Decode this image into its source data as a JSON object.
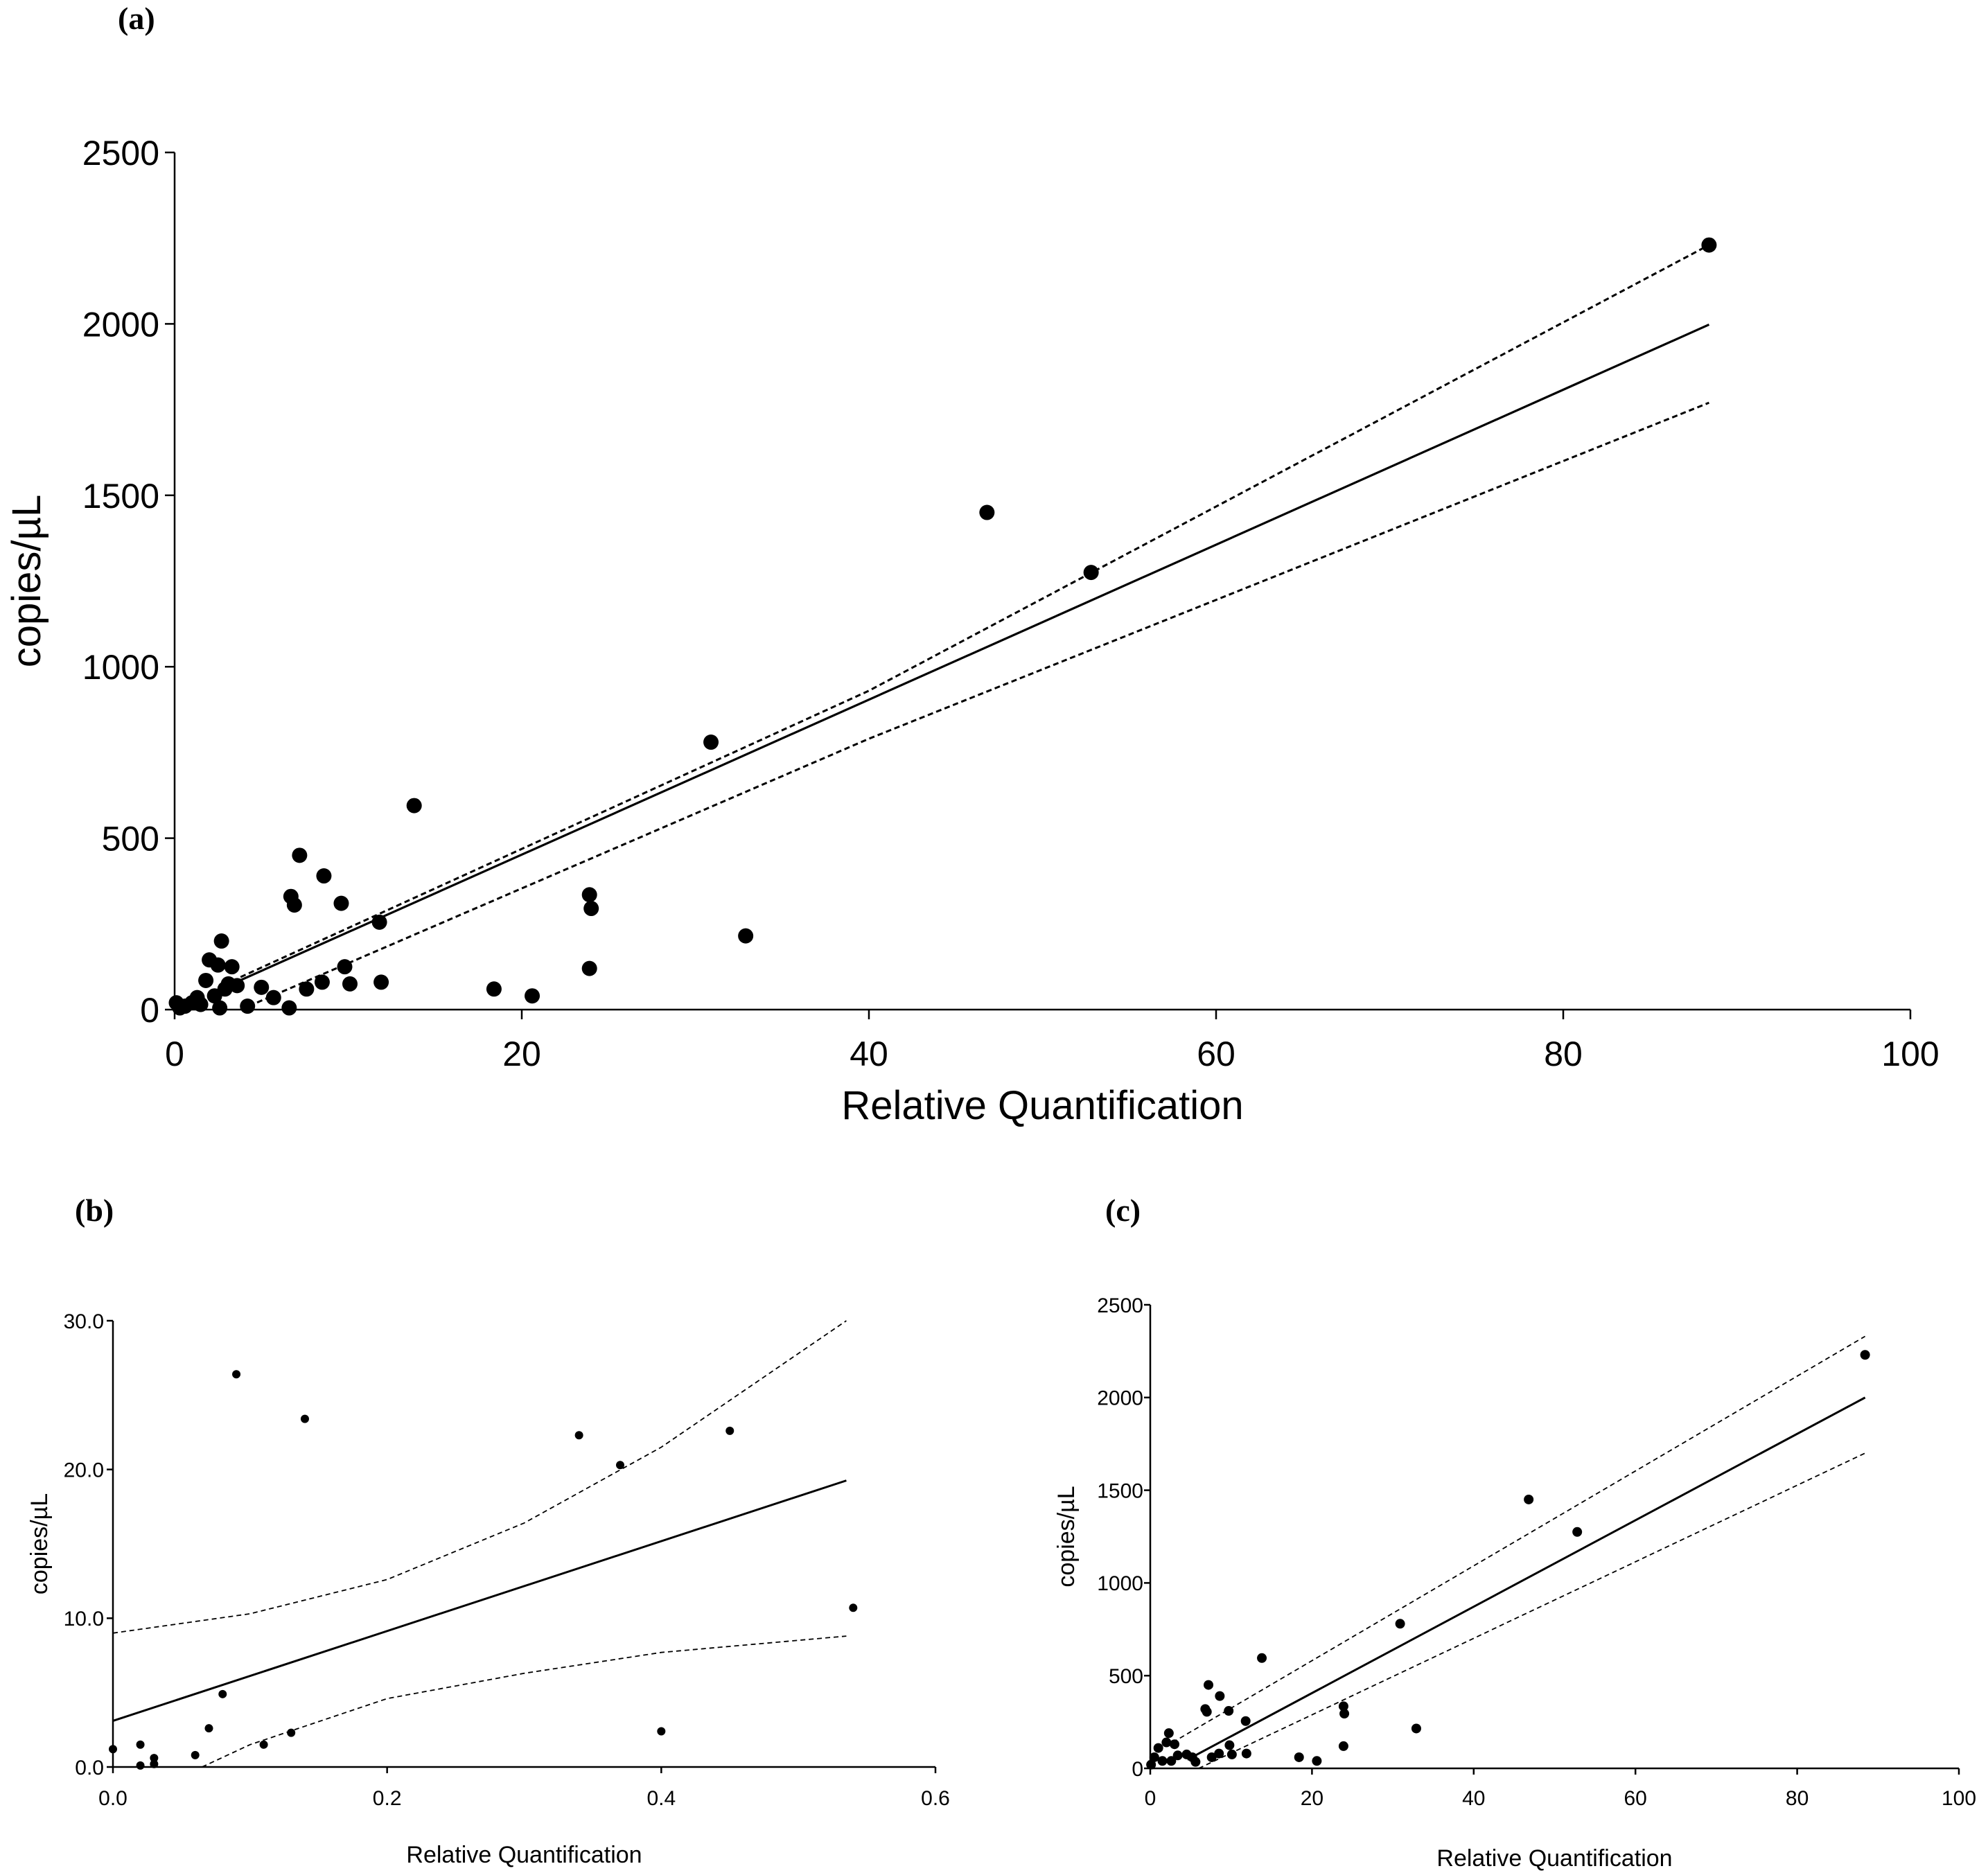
{
  "chart_data": [
    {
      "panel": "(a)",
      "type": "scatter",
      "xlabel": "Relative Quantification",
      "ylabel": "copies/µL",
      "xlim": [
        0,
        100
      ],
      "ylim": [
        0,
        2500
      ],
      "xticks": [
        0,
        20,
        40,
        60,
        80,
        100
      ],
      "yticks": [
        0,
        500,
        1000,
        1500,
        2000,
        2500
      ],
      "ytick_labels": [
        "0",
        "500",
        "1000",
        "1500",
        "2000",
        "2500"
      ],
      "points": [
        [
          0.1,
          20
        ],
        [
          0.3,
          5
        ],
        [
          0.6,
          10
        ],
        [
          1.0,
          20
        ],
        [
          1.3,
          35
        ],
        [
          1.5,
          15
        ],
        [
          1.8,
          85
        ],
        [
          2.0,
          145
        ],
        [
          2.3,
          40
        ],
        [
          2.5,
          130
        ],
        [
          2.6,
          5
        ],
        [
          2.7,
          200
        ],
        [
          2.9,
          60
        ],
        [
          3.1,
          75
        ],
        [
          3.3,
          125
        ],
        [
          3.6,
          70
        ],
        [
          4.2,
          10
        ],
        [
          5.0,
          65
        ],
        [
          5.7,
          35
        ],
        [
          6.6,
          5
        ],
        [
          6.7,
          330
        ],
        [
          6.9,
          305
        ],
        [
          7.2,
          450
        ],
        [
          7.6,
          60
        ],
        [
          8.5,
          80
        ],
        [
          8.6,
          390
        ],
        [
          9.6,
          310
        ],
        [
          9.8,
          125
        ],
        [
          10.1,
          75
        ],
        [
          11.8,
          255
        ],
        [
          11.9,
          80
        ],
        [
          13.8,
          595
        ],
        [
          18.4,
          60
        ],
        [
          20.6,
          40
        ],
        [
          23.9,
          335
        ],
        [
          24.0,
          295
        ],
        [
          23.9,
          120
        ],
        [
          30.9,
          780
        ],
        [
          32.9,
          215
        ],
        [
          46.8,
          1450
        ],
        [
          52.8,
          1275
        ],
        [
          88.4,
          2230
        ]
      ],
      "fit": {
        "slope": 22.6,
        "intercept": 0,
        "x_range": [
          3.8,
          88.4
        ]
      },
      "ci_upper": [
        [
          3.8,
          95
        ],
        [
          40,
          930
        ],
        [
          88.4,
          2230
        ]
      ],
      "ci_lower": [
        [
          3.8,
          0
        ],
        [
          40,
          790
        ],
        [
          88.4,
          1770
        ]
      ]
    },
    {
      "panel": "(b)",
      "type": "scatter",
      "xlabel": "Relative Quantification",
      "ylabel": "copies/µL",
      "xlim": [
        0,
        0.6
      ],
      "ylim": [
        0,
        30
      ],
      "xticks": [
        0,
        0.2,
        0.4,
        0.6
      ],
      "xtick_labels": [
        "0.0",
        "0.2",
        "0.4",
        "0.6"
      ],
      "yticks": [
        0,
        10,
        20,
        30
      ],
      "ytick_labels": [
        "0.0",
        "10.0",
        "20.0",
        "30.0"
      ],
      "points": [
        [
          0.0,
          1.2
        ],
        [
          0.02,
          0.1
        ],
        [
          0.02,
          1.5
        ],
        [
          0.03,
          0.6
        ],
        [
          0.03,
          0.2
        ],
        [
          0.06,
          0.8
        ],
        [
          0.07,
          2.6
        ],
        [
          0.08,
          4.9
        ],
        [
          0.09,
          26.4
        ],
        [
          0.11,
          1.5
        ],
        [
          0.13,
          2.3
        ],
        [
          0.14,
          23.4
        ],
        [
          0.34,
          22.3
        ],
        [
          0.37,
          20.3
        ],
        [
          0.4,
          2.4
        ],
        [
          0.45,
          22.6
        ],
        [
          0.54,
          10.7
        ]
      ],
      "fit": {
        "slope": 30.2,
        "intercept": 3.1,
        "x_range": [
          0,
          0.535
        ]
      },
      "ci_upper": [
        [
          0,
          9.0
        ],
        [
          0.1,
          10.3
        ],
        [
          0.2,
          12.6
        ],
        [
          0.3,
          16.4
        ],
        [
          0.4,
          21.5
        ],
        [
          0.535,
          30.0
        ]
      ],
      "ci_lower": [
        [
          0.065,
          0
        ],
        [
          0.1,
          1.5
        ],
        [
          0.2,
          4.6
        ],
        [
          0.3,
          6.3
        ],
        [
          0.4,
          7.7
        ],
        [
          0.535,
          8.8
        ]
      ]
    },
    {
      "panel": "(c)",
      "type": "scatter",
      "xlabel": "Relative Quantification",
      "ylabel": "copies/µL",
      "xlim": [
        0,
        100
      ],
      "ylim": [
        0,
        2500
      ],
      "xticks": [
        0,
        20,
        40,
        60,
        80,
        100
      ],
      "yticks": [
        0,
        500,
        1000,
        1500,
        2000,
        2500
      ],
      "ytick_labels": [
        "0",
        "500",
        "1000",
        "1500",
        "2000",
        "2500"
      ],
      "points": [
        [
          0.1,
          20
        ],
        [
          0.5,
          60
        ],
        [
          1.0,
          110
        ],
        [
          1.5,
          40
        ],
        [
          2.0,
          140
        ],
        [
          2.3,
          190
        ],
        [
          2.6,
          40
        ],
        [
          3.0,
          130
        ],
        [
          3.4,
          70
        ],
        [
          4.5,
          75
        ],
        [
          5.2,
          60
        ],
        [
          5.6,
          35
        ],
        [
          6.8,
          320
        ],
        [
          7.0,
          305
        ],
        [
          7.2,
          450
        ],
        [
          7.6,
          60
        ],
        [
          8.5,
          80
        ],
        [
          8.6,
          390
        ],
        [
          9.7,
          310
        ],
        [
          9.8,
          125
        ],
        [
          10.1,
          75
        ],
        [
          11.8,
          255
        ],
        [
          11.9,
          80
        ],
        [
          13.8,
          595
        ],
        [
          18.4,
          60
        ],
        [
          20.6,
          40
        ],
        [
          23.9,
          335
        ],
        [
          24.0,
          295
        ],
        [
          23.9,
          120
        ],
        [
          30.9,
          780
        ],
        [
          32.9,
          215
        ],
        [
          46.8,
          1450
        ],
        [
          52.8,
          1275
        ],
        [
          88.4,
          2230
        ]
      ],
      "fit": {
        "slope": 23.3,
        "intercept": -60,
        "x_range": [
          4.6,
          88.4
        ]
      },
      "ci_upper": [
        [
          1.0,
          95
        ],
        [
          88.4,
          2330
        ]
      ],
      "ci_lower": [
        [
          6.0,
          0
        ],
        [
          88.4,
          1700
        ]
      ]
    }
  ]
}
